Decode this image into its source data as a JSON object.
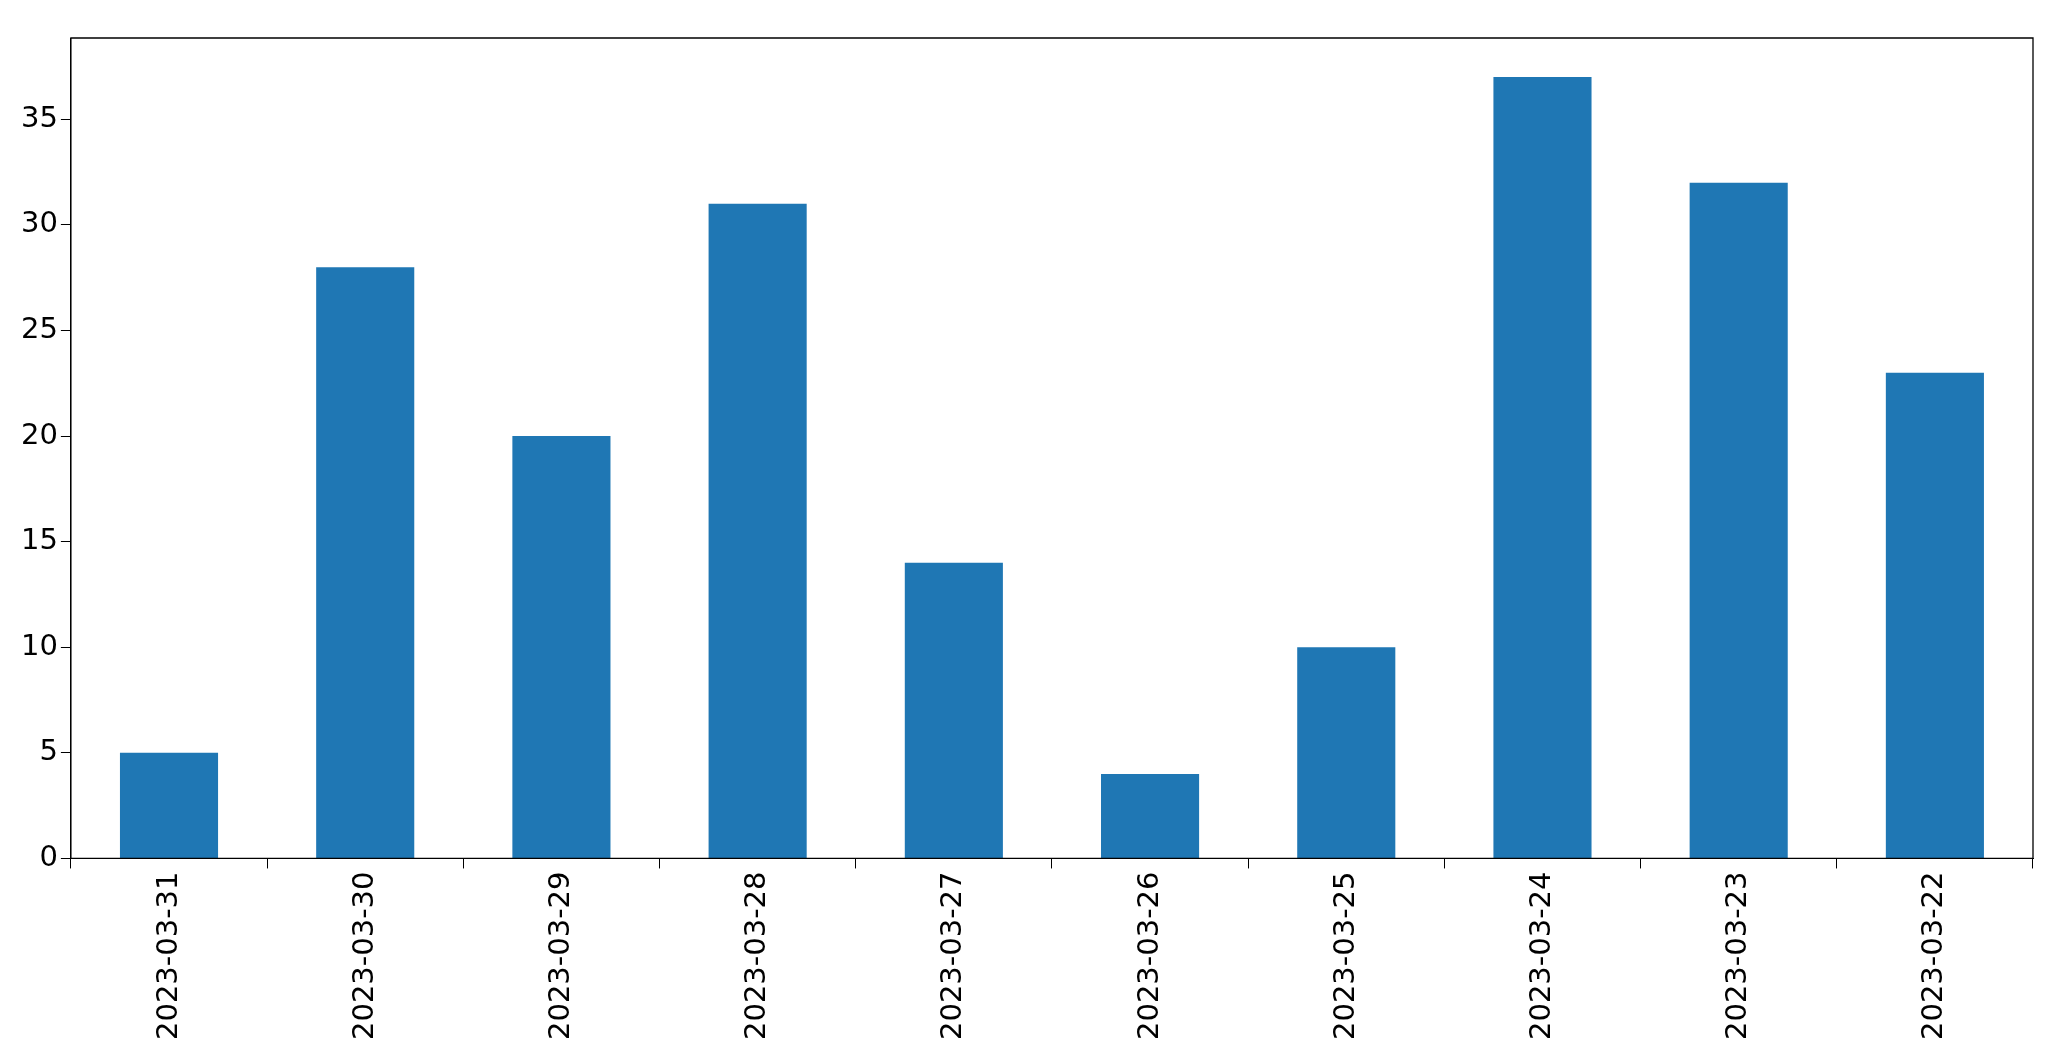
{
  "chart_data": {
    "type": "bar",
    "categories": [
      "2023-03-31",
      "2023-03-30",
      "2023-03-29",
      "2023-03-28",
      "2023-03-27",
      "2023-03-26",
      "2023-03-25",
      "2023-03-24",
      "2023-03-23",
      "2023-03-22"
    ],
    "values": [
      5,
      28,
      20,
      31,
      14,
      4,
      10,
      37,
      32,
      23
    ],
    "color": "#1f77b4",
    "ylim": [
      0,
      38.85
    ],
    "yticks": [
      0,
      5,
      10,
      15,
      20,
      25,
      30,
      35
    ],
    "grid": false,
    "legend": false
  }
}
